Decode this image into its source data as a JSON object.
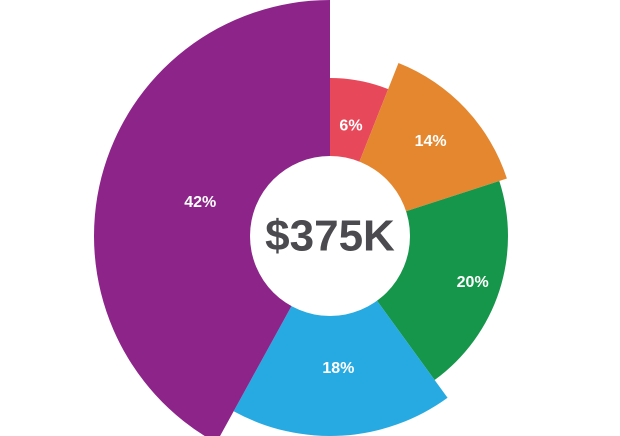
{
  "chart_data": {
    "type": "pie",
    "variant": "variable-radius-donut",
    "center_label": "$375K",
    "slices": [
      {
        "label": "6%",
        "value": 6,
        "color": "#e8495a"
      },
      {
        "label": "14%",
        "value": 14,
        "color": "#e4872f"
      },
      {
        "label": "20%",
        "value": 20,
        "color": "#16964a"
      },
      {
        "label": "18%",
        "value": 18,
        "color": "#27aae1"
      },
      {
        "label": "42%",
        "value": 42,
        "color": "#8c2489"
      }
    ],
    "legend": "none"
  }
}
